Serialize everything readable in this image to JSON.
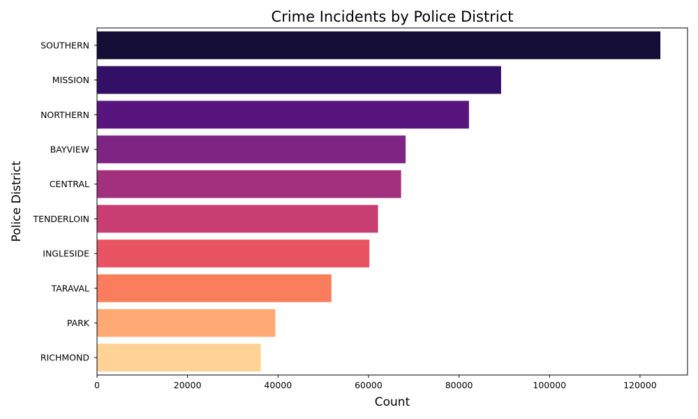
{
  "chart_data": {
    "type": "bar",
    "orientation": "horizontal",
    "title": "Crime Incidents by Police District",
    "xlabel": "Count",
    "ylabel": "Police District",
    "categories": [
      "SOUTHERN",
      "MISSION",
      "NORTHERN",
      "BAYVIEW",
      "CENTRAL",
      "TENDERLOIN",
      "INGLESIDE",
      "TARAVAL",
      "PARK",
      "RICHMOND"
    ],
    "values": [
      124500,
      89300,
      82200,
      68200,
      67200,
      62100,
      60200,
      51800,
      39400,
      36200
    ],
    "colors": [
      "#140e36",
      "#331067",
      "#59157e",
      "#7e2482",
      "#a3307e",
      "#c83e73",
      "#e95462",
      "#fa7d5e",
      "#fea973",
      "#fed395"
    ],
    "xlim": [
      0,
      130500
    ],
    "xticks": [
      0,
      20000,
      40000,
      60000,
      80000,
      100000,
      120000
    ],
    "xtick_labels": [
      "0",
      "20000",
      "40000",
      "60000",
      "80000",
      "100000",
      "120000"
    ],
    "grid": false,
    "legend": "none"
  }
}
